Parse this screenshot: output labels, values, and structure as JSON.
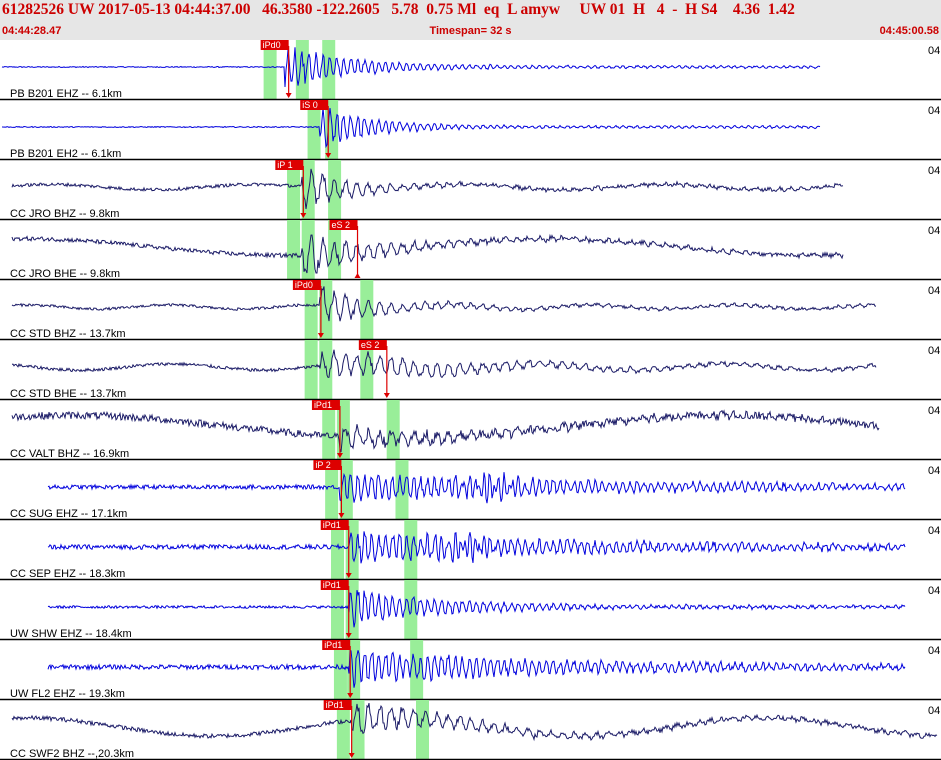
{
  "header": {
    "title": "61282526 UW 2017-05-13 04:44:37.00   46.3580 -122.2605   5.78  0.75 Ml  eq  L amyw     UW 01  H   4  -  H S4    4.36  1.42",
    "start_time": "04:44:28.47",
    "timespan": "Timespan=  32 s",
    "end_time": "04:45:00.58"
  },
  "chart_data": {
    "type": "line",
    "xlabel": "",
    "ylabel": "",
    "xlim": [
      0,
      32.11
    ],
    "grid": false,
    "colors": {
      "blue": "#0000dd",
      "navy": "#1a1a66",
      "pick": "#dd0000",
      "window": "#99ee99",
      "separator": "#000000"
    },
    "traces": [
      {
        "label": "PB B201 EHZ -- 6.1km",
        "right": "04",
        "color": "#0000dd",
        "noise": 0.02,
        "wave": [
          0,
          0,
          0
        ],
        "onset": 9.7,
        "end": 28.0,
        "amp": 0.85,
        "decay": 2.2,
        "peaks": [],
        "pick": {
          "label": "iPd0",
          "t": 9.85,
          "dir": "down"
        },
        "windows": [
          9.2,
          10.3,
          11.2
        ]
      },
      {
        "label": "PB B201 EH2 -- 6.1km",
        "right": "04",
        "color": "#0000dd",
        "noise": 0.02,
        "wave": [
          0,
          0,
          0
        ],
        "onset": 10.9,
        "end": 28.0,
        "amp": 0.9,
        "decay": 1.7,
        "peaks": [],
        "pick": {
          "label": "iS 0",
          "t": 11.2,
          "dir": "down"
        },
        "windows": [
          10.7,
          11.3
        ]
      },
      {
        "label": "CC JRO BHZ -- 9.8km",
        "right": "04",
        "color": "#1a1a66",
        "noise": 0.06,
        "wave": [
          0.1,
          0.9,
          0
        ],
        "onset": 10.3,
        "end": 28.8,
        "amp": 0.85,
        "decay": 1.6,
        "peaks": [],
        "pick": {
          "label": "iP 1",
          "t": 10.35,
          "dir": "down"
        },
        "windows": [
          10.0,
          10.5,
          11.4
        ]
      },
      {
        "label": "CC JRO BHE -- 9.8km",
        "right": "04",
        "color": "#1a1a66",
        "noise": 0.08,
        "wave": [
          0.32,
          0.35,
          1.3
        ],
        "onset": 10.3,
        "end": 28.8,
        "amp": 0.8,
        "decay": 2.4,
        "peaks": [],
        "pick": {
          "label": "eS 2",
          "t": 12.2,
          "dir": "up"
        },
        "windows": [
          10.0,
          10.5,
          11.4
        ]
      },
      {
        "label": "CC STD BHZ -- 13.7km",
        "right": "04",
        "color": "#1a1a66",
        "noise": 0.05,
        "wave": [
          0.08,
          1.3,
          0.4
        ],
        "onset": 10.9,
        "end": 29.9,
        "amp": 0.8,
        "decay": 1.8,
        "peaks": [],
        "pick": {
          "label": "iPd0",
          "t": 10.95,
          "dir": "down"
        },
        "windows": [
          10.6,
          11.1,
          12.5
        ]
      },
      {
        "label": "CC STD BHE -- 13.7km",
        "right": "04",
        "color": "#1a1a66",
        "noise": 0.06,
        "wave": [
          0.12,
          1.0,
          2.0
        ],
        "onset": 10.9,
        "end": 29.9,
        "amp": 0.6,
        "decay": 4.5,
        "peaks": [],
        "pick": {
          "label": "eS 2",
          "t": 13.2,
          "dir": "down"
        },
        "windows": [
          10.6,
          11.1,
          12.5
        ]
      },
      {
        "label": "CC VALT BHZ -- 16.9km",
        "right": "04",
        "color": "#1a1a66",
        "noise": 0.14,
        "wave": [
          0.45,
          0.28,
          0.9
        ],
        "onset": 11.6,
        "end": 30.0,
        "amp": 0.45,
        "decay": 3.5,
        "peaks": [],
        "pick": {
          "label": "iPd1",
          "t": 11.6,
          "dir": "down"
        },
        "windows": [
          11.2,
          11.7,
          13.4
        ]
      },
      {
        "label": "CC SUG EHZ -- 17.1km",
        "right": "04",
        "color": "#0000dd",
        "noise": 0.08,
        "wave": [
          0,
          0,
          0
        ],
        "onset": 11.6,
        "end": 30.9,
        "amp": 0.55,
        "decay": 9.0,
        "peaks": [
          16.7
        ],
        "pick": {
          "label": "iP 2",
          "t": 11.65,
          "dir": "down"
        },
        "windows": [
          11.3,
          11.8,
          13.7
        ]
      },
      {
        "label": "CC SEP EHZ -- 18.3km",
        "right": "04",
        "color": "#0000dd",
        "noise": 0.09,
        "wave": [
          0,
          0,
          0
        ],
        "onset": 11.9,
        "end": 30.9,
        "amp": 0.6,
        "decay": 8.0,
        "peaks": [
          15.8
        ],
        "pick": {
          "label": "iPd1",
          "t": 11.9,
          "dir": "down"
        },
        "windows": [
          11.5,
          12.0,
          14.0
        ]
      },
      {
        "label": "UW SHW EHZ -- 18.4km",
        "right": "04",
        "color": "#0000dd",
        "noise": 0.05,
        "wave": [
          0,
          0,
          0
        ],
        "onset": 11.9,
        "end": 30.9,
        "amp": 0.8,
        "decay": 3.0,
        "peaks": [],
        "pick": {
          "label": "iPd1",
          "t": 11.9,
          "dir": "down"
        },
        "windows": [
          11.5,
          12.0,
          14.0
        ]
      },
      {
        "label": "UW FL2 EHZ -- 19.3km",
        "right": "04",
        "color": "#0000dd",
        "noise": 0.09,
        "wave": [
          0,
          0,
          0
        ],
        "onset": 11.9,
        "end": 30.9,
        "amp": 0.7,
        "decay": 7.0,
        "peaks": [],
        "pick": {
          "label": "iPd1",
          "t": 11.95,
          "dir": "down"
        },
        "windows": [
          11.6,
          12.05,
          14.2
        ]
      },
      {
        "label": "CC SWF2 BHZ --,20.3km",
        "right": "04",
        "color": "#1a1a66",
        "noise": 0.08,
        "wave": [
          0.35,
          0.5,
          1.1
        ],
        "onset": 12.0,
        "end": 32.0,
        "amp": 0.65,
        "decay": 3.5,
        "peaks": [],
        "pick": {
          "label": "iPd1",
          "t": 12.0,
          "dir": "down"
        },
        "windows": [
          11.7,
          12.2,
          14.4
        ]
      }
    ]
  }
}
